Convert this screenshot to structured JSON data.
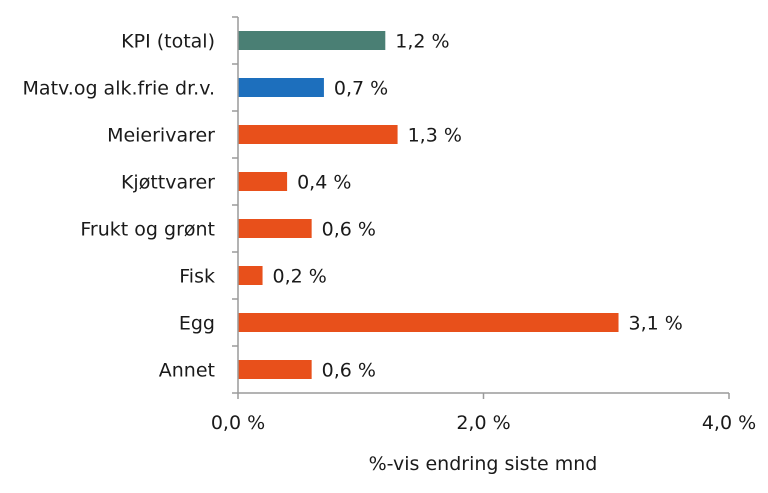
{
  "chart_data": {
    "type": "bar",
    "orientation": "horizontal",
    "categories": [
      "KPI (total)",
      "Matv.og alk.frie dr.v.",
      "Meierivarer",
      "Kjøttvarer",
      "Frukt og grønt",
      "Fisk",
      "Egg",
      "Annet"
    ],
    "values": [
      1.2,
      0.7,
      1.3,
      0.4,
      0.6,
      0.2,
      3.1,
      0.6
    ],
    "value_labels": [
      "1,2 %",
      "0,7 %",
      "1,3 %",
      "0,4 %",
      "0,6 %",
      "0,2 %",
      "3,1 %",
      "0,6 %"
    ],
    "bar_colors": [
      "#4a7f74",
      "#1d6fbd",
      "#e8501b",
      "#e8501b",
      "#e8501b",
      "#e8501b",
      "#e8501b",
      "#e8501b"
    ],
    "xlabel": "%-vis endring siste mnd",
    "xlim": [
      0,
      4
    ],
    "xticks": [
      0,
      2,
      4
    ],
    "xtick_labels": [
      "0,0 %",
      "2,0 %",
      "4,0 %"
    ],
    "grid": false,
    "legend": "none",
    "colors": {
      "axis": "#9a9a9a",
      "text": "#1a1a1a"
    }
  }
}
